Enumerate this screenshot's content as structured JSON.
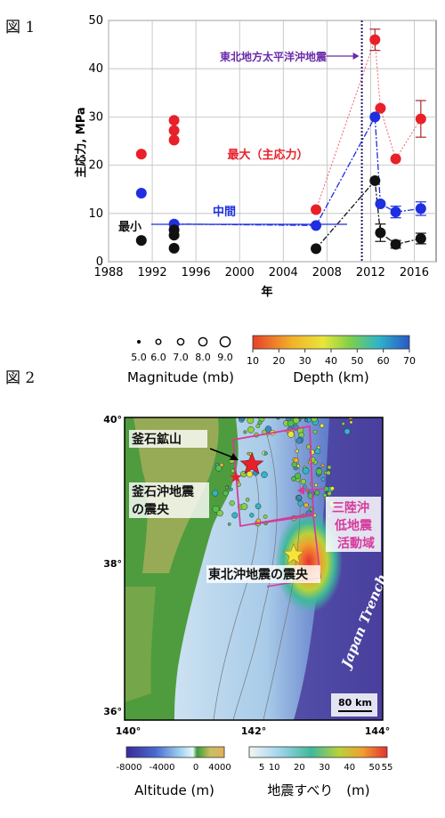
{
  "figure1_label": "図 1",
  "figure2_label": "図 2",
  "chart_data": [
    {
      "type": "scatter",
      "title": "",
      "xlabel": "年",
      "ylabel": "主応力, MPa",
      "xlim": [
        1988,
        2018
      ],
      "ylim": [
        0,
        50
      ],
      "x_ticks": [
        1988,
        1992,
        1996,
        2000,
        2004,
        2008,
        2012,
        2016
      ],
      "y_ticks": [
        0,
        10,
        20,
        30,
        40,
        50
      ],
      "grid": true,
      "vertical_marker": {
        "x": 2011.2,
        "label": "東北地方太平洋沖地震"
      },
      "series": [
        {
          "name": "最大（主応力）",
          "color": "#e8202a",
          "points": [
            [
              1991,
              22.3
            ],
            [
              1994,
              29.3
            ],
            [
              1994,
              27.2
            ],
            [
              1994,
              25.2
            ],
            [
              2007,
              10.8
            ],
            [
              2012.4,
              46
            ],
            [
              2012.9,
              31.8
            ],
            [
              2014.3,
              21.3
            ],
            [
              2016.6,
              29.6
            ]
          ],
          "errors": [
            0,
            0,
            0,
            0,
            0,
            2.2,
            0,
            0,
            3.8
          ],
          "connected_from_index": 4
        },
        {
          "name": "中間",
          "color": "#1f2fe0",
          "points": [
            [
              1991,
              14.2
            ],
            [
              1994,
              7.8
            ],
            [
              2007,
              7.5
            ],
            [
              2012.4,
              30
            ],
            [
              2012.9,
              12
            ],
            [
              2014.3,
              10.3
            ],
            [
              2016.6,
              11
            ]
          ],
          "errors": [
            0,
            0,
            0,
            0,
            0,
            1.2,
            1.4
          ],
          "connected_from_index": 1
        },
        {
          "name": "最小",
          "color": "#111111",
          "points": [
            [
              1991,
              4.4
            ],
            [
              1994,
              6.6
            ],
            [
              1994,
              5.5
            ],
            [
              1994,
              2.8
            ],
            [
              2007,
              2.7
            ],
            [
              2012.4,
              16.8
            ],
            [
              2012.9,
              6
            ],
            [
              2014.3,
              3.6
            ],
            [
              2016.6,
              4.8
            ]
          ],
          "errors": [
            0,
            0,
            0,
            0,
            0,
            0,
            1.8,
            0.8,
            1.1
          ],
          "connected_from_index": 4
        }
      ],
      "annotations": [
        "最大（主応力）",
        "中間",
        "最小",
        "東北地方太平洋沖地震"
      ]
    },
    {
      "type": "map",
      "legend_magnitude": {
        "title": "Magnitude (mb)",
        "values": [
          "5.0",
          "6.0",
          "7.0",
          "8.0",
          "9.0"
        ]
      },
      "legend_depth": {
        "title": "Depth (km)",
        "ticks": [
          "10",
          "20",
          "30",
          "40",
          "50",
          "60",
          "70"
        ]
      },
      "legend_altitude": {
        "title": "Altitude (m)",
        "ticks": [
          "-8000",
          "-4000",
          "0",
          "4000"
        ]
      },
      "legend_slip": {
        "title": "地震すべり　(m)",
        "ticks": [
          "5",
          "10",
          "20",
          "30",
          "40",
          "50",
          "55"
        ]
      },
      "lat_ticks": [
        "40°",
        "38°",
        "36°"
      ],
      "lon_ticks": [
        "140°",
        "142°",
        "144°"
      ],
      "labels": {
        "mine": "釜石鉱山",
        "kamaishi_quake_1": "釜石沖地震",
        "kamaishi_quake_2": "の震央",
        "tohoku_epicenter": "東北沖地震の震央",
        "sanriku_1": "三陸沖",
        "sanriku_2": "低地震",
        "sanriku_3": "活動域",
        "trench": "Japan Trench",
        "scale": "80 km"
      },
      "colors": {
        "red_star": "#e8202a",
        "yellow_star": "#f5e43a",
        "box": "#d6399b"
      }
    }
  ]
}
